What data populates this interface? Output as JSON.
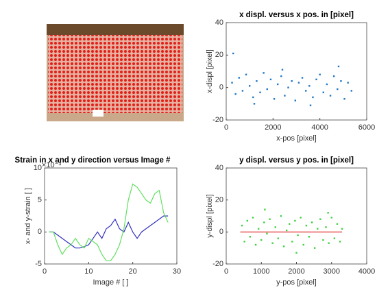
{
  "chart_data": [
    {
      "type": "scatter",
      "title": "x displ. versus x pos. in [pixel]",
      "xlabel": "x-pos [pixel]",
      "ylabel": "x-displ [pixel]",
      "xlim": [
        0,
        6000
      ],
      "xticks": [
        0,
        2000,
        4000,
        6000
      ],
      "ylim": [
        -20,
        40
      ],
      "yticks": [
        -20,
        0,
        20,
        40
      ],
      "color": "#1f77c4",
      "x": [
        250,
        400,
        550,
        700,
        850,
        1000,
        1150,
        1300,
        1450,
        1600,
        1750,
        1900,
        2050,
        2200,
        2350,
        2500,
        2650,
        2800,
        2950,
        3100,
        3250,
        3400,
        3550,
        3700,
        3850,
        4000,
        4150,
        4300,
        4450,
        4600,
        4750,
        4900,
        5050,
        5200,
        5350,
        300,
        1200,
        2400,
        3600,
        4800
      ],
      "values": [
        3,
        -4,
        6,
        -2,
        8,
        1,
        -6,
        4,
        -3,
        9,
        -1,
        5,
        -7,
        2,
        7,
        -5,
        0,
        4,
        -8,
        3,
        6,
        -2,
        1,
        -6,
        5,
        8,
        -3,
        2,
        -5,
        7,
        -1,
        4,
        -7,
        3,
        -2,
        21,
        -10,
        11,
        -11,
        13
      ]
    },
    {
      "type": "line",
      "title": "Strain in x and y direction versus Image #",
      "xlabel": "Image # [ ]",
      "ylabel": "x- and y-strain [ ]",
      "y_multiplier": "×10⁻³",
      "xlim": [
        0,
        30
      ],
      "xticks": [
        0,
        10,
        20,
        30
      ],
      "ylim": [
        -5,
        10
      ],
      "yticks": [
        -5,
        0,
        5,
        10
      ],
      "x": [
        1,
        2,
        3,
        4,
        5,
        6,
        7,
        8,
        9,
        10,
        11,
        12,
        13,
        14,
        15,
        16,
        17,
        18,
        19,
        20,
        21,
        22,
        23,
        24,
        25,
        26,
        27,
        28
      ],
      "series": [
        {
          "color": "#3030c0",
          "values": [
            0,
            0,
            -0.5,
            -1,
            -1.5,
            -2,
            -2.5,
            -2.5,
            -2.3,
            -2,
            -1,
            0,
            -1,
            0.5,
            1,
            2,
            0.5,
            0,
            1.5,
            0,
            -1,
            0,
            0.5,
            1,
            1.5,
            2,
            2.5,
            2.5
          ]
        },
        {
          "color": "#60e060",
          "values": [
            0,
            0,
            -2,
            -3.5,
            -2.5,
            -2,
            -1,
            -2,
            -2.5,
            -1,
            -1.5,
            -2,
            -3.5,
            -4.5,
            -4.5,
            -3.5,
            -2,
            0.5,
            5,
            7.5,
            7,
            6,
            5,
            4.5,
            6,
            6.5,
            3,
            1.5
          ]
        }
      ]
    },
    {
      "type": "scatter",
      "title": "y displ. versus y pos. in [pixel]",
      "xlabel": "y-pos [pixel]",
      "ylabel": "y-displ [pixel]",
      "xlim": [
        0,
        4000
      ],
      "xticks": [
        0,
        1000,
        2000,
        3000,
        4000
      ],
      "ylim": [
        -20,
        40
      ],
      "yticks": [
        -20,
        0,
        20,
        40
      ],
      "color": "#40d040",
      "x": [
        450,
        520,
        600,
        680,
        760,
        840,
        920,
        1000,
        1080,
        1160,
        1240,
        1320,
        1400,
        1480,
        1560,
        1640,
        1720,
        1800,
        1880,
        1960,
        2040,
        2120,
        2200,
        2280,
        2360,
        2440,
        2520,
        2600,
        2680,
        2760,
        2840,
        2920,
        3000,
        3080,
        3160,
        3240,
        3300,
        1100,
        2000,
        2900
      ],
      "values": [
        4,
        -6,
        7,
        -3,
        9,
        -8,
        2,
        -5,
        6,
        -1,
        8,
        -7,
        3,
        -4,
        10,
        -9,
        1,
        5,
        -6,
        7,
        -2,
        9,
        -8,
        4,
        -3,
        6,
        -10,
        2,
        8,
        -5,
        3,
        -7,
        9,
        -4,
        5,
        -6,
        2,
        14,
        -13,
        12
      ],
      "fit": {
        "x": [
          400,
          3300
        ],
        "values": [
          0,
          0
        ],
        "color": "#e02020"
      }
    }
  ]
}
